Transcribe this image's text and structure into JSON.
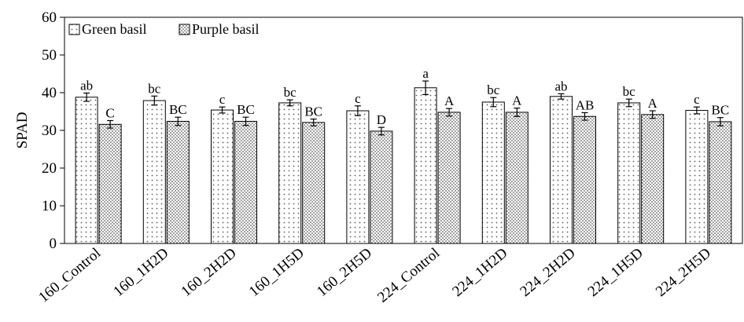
{
  "chart_data": {
    "type": "bar",
    "title": "",
    "xlabel": "",
    "ylabel": "SPAD",
    "ylim": [
      0,
      60
    ],
    "yticks": [
      0,
      10,
      20,
      30,
      40,
      50,
      60
    ],
    "grid": false,
    "legend_position": "top-left",
    "categories": [
      "160_Control",
      "160_1H2D",
      "160_2H2D",
      "160_1H5D",
      "160_2H5D",
      "224_Control",
      "224_1H2D",
      "224_2H2D",
      "224_1H5D",
      "224_2H5D"
    ],
    "series": [
      {
        "name": "Green basil",
        "pattern": "sparse-dots",
        "values": [
          38.8,
          37.9,
          35.4,
          37.3,
          35.2,
          41.3,
          37.5,
          39.0,
          37.3,
          35.3
        ],
        "errors": [
          1.1,
          1.2,
          0.8,
          0.8,
          1.3,
          1.8,
          1.2,
          0.7,
          1.0,
          0.9
        ],
        "labels": [
          "ab",
          "bc",
          "c",
          "bc",
          "c",
          "a",
          "bc",
          "ab",
          "bc",
          "c"
        ]
      },
      {
        "name": "Purple basil",
        "pattern": "dense-dots",
        "values": [
          31.6,
          32.4,
          32.4,
          32.1,
          29.8,
          34.8,
          34.8,
          33.7,
          34.2,
          32.3
        ],
        "errors": [
          1.0,
          1.1,
          1.1,
          0.9,
          1.0,
          1.0,
          1.1,
          1.0,
          1.0,
          1.1
        ],
        "labels": [
          "C",
          "BC",
          "BC",
          "BC",
          "D",
          "A",
          "A",
          "AB",
          "A",
          "BC"
        ]
      }
    ],
    "colors": {
      "bar_fill": "#ffffff",
      "dot": "#5a5a5a",
      "axis": "#000000"
    }
  }
}
